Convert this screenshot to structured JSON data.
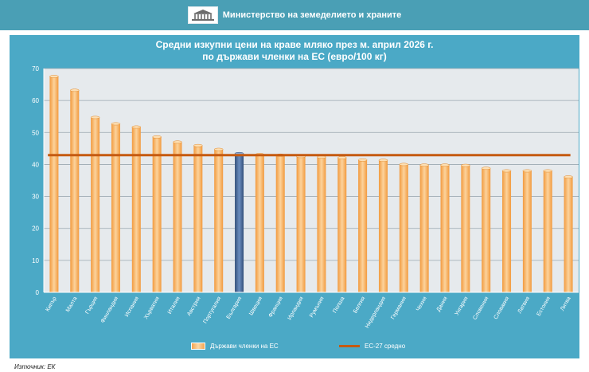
{
  "header": {
    "ministry_name": "Министерство на земеделието и храните",
    "emblem_icon": "parliament-building-icon"
  },
  "chart_data": {
    "type": "bar",
    "title_line1": "Средни изкупни цени на краве мляко през м. април 2026 г.",
    "title_line2": "по държави членки на ЕС (евро/100 кг)",
    "categories": [
      "Кипър",
      "Малта",
      "Гърция",
      "Финландия",
      "Испания",
      "Хърватия",
      "Италия",
      "Австрия",
      "Португалия",
      "България",
      "Швеция",
      "Франция",
      "Ирландия",
      "Румъния",
      "Полша",
      "Белгия",
      "Нидерландия",
      "Германия",
      "Чехия",
      "Дания",
      "Унгария",
      "Словения",
      "Словакия",
      "Латвия",
      "Естония",
      "Литва"
    ],
    "series": [
      {
        "name": "Държави членки на ЕС",
        "type": "bar",
        "values": [
          67.5,
          63.2,
          54.7,
          52.7,
          51.7,
          48.6,
          47.0,
          45.9,
          44.7,
          43.4,
          43.1,
          42.9,
          42.5,
          42.3,
          42.1,
          41.4,
          41.3,
          40.0,
          39.8,
          39.8,
          39.7,
          38.8,
          38.0,
          38.0,
          38.0,
          36.1
        ],
        "color": "#f4a450",
        "highlight": {
          "category": "България",
          "color": "#3d5f8f"
        }
      },
      {
        "name": "ЕС-27 средно",
        "type": "line",
        "value": 42.9,
        "color": "#c55a11"
      }
    ],
    "ylim": [
      0,
      70
    ],
    "yticks": [
      0,
      10,
      20,
      30,
      40,
      50,
      60,
      70
    ],
    "grid": true,
    "legend_position": "bottom"
  },
  "source": "Източник: ЕК"
}
